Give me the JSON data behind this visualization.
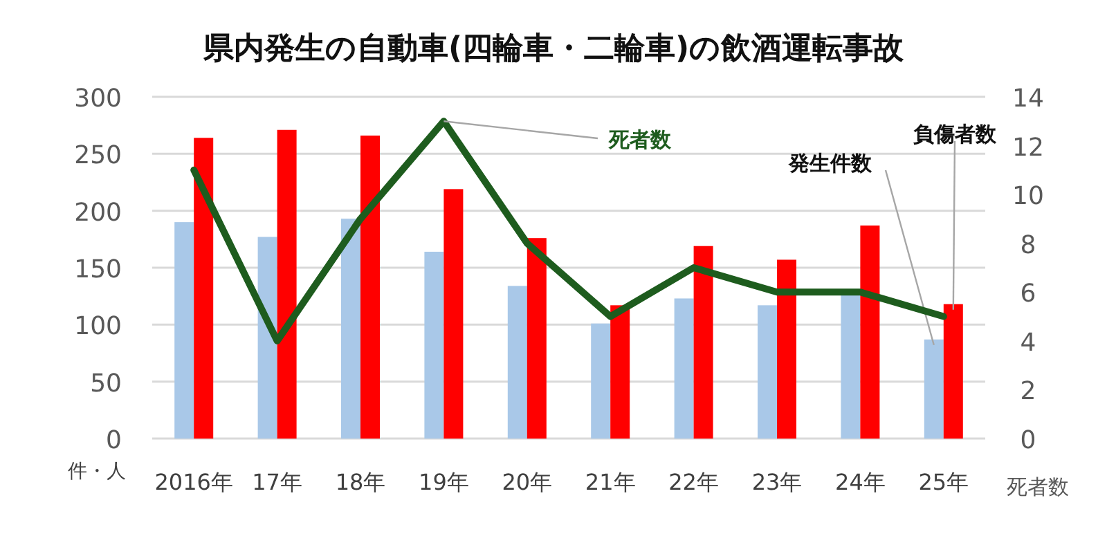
{
  "chart_data": {
    "type": "bar",
    "title": "県内発生の自動車(四輪車・二輪車)の飲酒運転事故",
    "categories": [
      "2016年",
      "17年",
      "18年",
      "19年",
      "20年",
      "21年",
      "22年",
      "23年",
      "24年",
      "25年"
    ],
    "series": [
      {
        "name": "発生件数",
        "color": "#a9c8e8",
        "values": [
          190,
          177,
          193,
          164,
          134,
          101,
          123,
          117,
          126,
          87
        ]
      },
      {
        "name": "負傷者数",
        "color": "#ff0000",
        "values": [
          264,
          271,
          266,
          219,
          176,
          117,
          169,
          157,
          187,
          118
        ]
      },
      {
        "name": "死者数",
        "type": "line",
        "axis": "y2",
        "color": "#1e5c1e",
        "values": [
          11,
          4,
          9,
          13,
          8,
          5,
          7,
          6,
          6,
          5
        ]
      }
    ],
    "ylim": [
      0,
      300
    ],
    "yticks": [
      0,
      50,
      100,
      150,
      200,
      250,
      300
    ],
    "y2lim": [
      0,
      14
    ],
    "y2ticks": [
      0,
      2,
      4,
      6,
      8,
      10,
      12,
      14
    ],
    "ylabel": "件・人",
    "y2label": "死者数",
    "grid": "y"
  }
}
